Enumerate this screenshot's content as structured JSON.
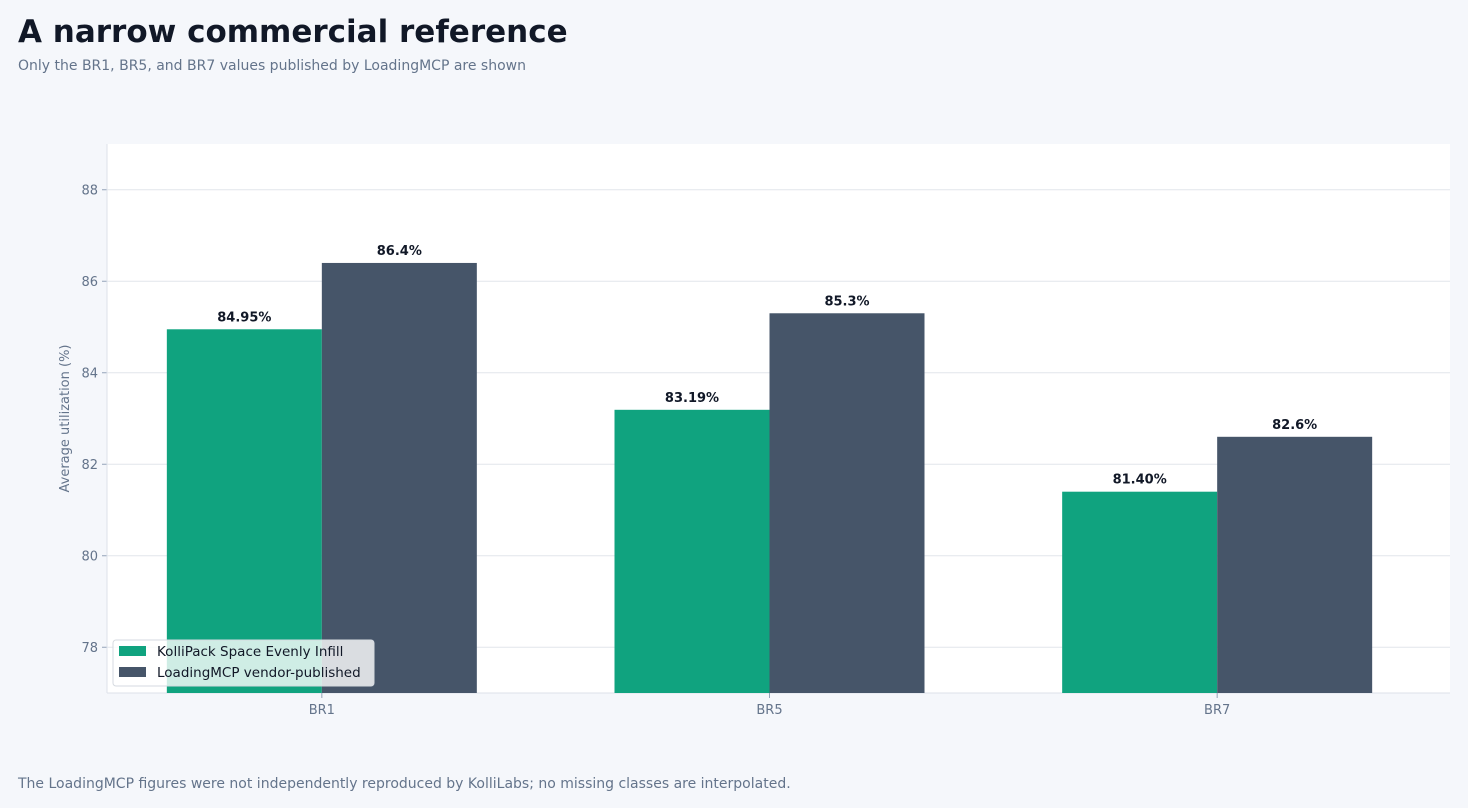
{
  "header": {
    "title": "A narrow commercial reference",
    "subtitle": "Only the BR1, BR5, and BR7 values published by LoadingMCP are shown"
  },
  "footnote": "The LoadingMCP figures were not independently reproduced by KolliLabs; no missing classes are interpolated.",
  "chart_data": {
    "type": "bar",
    "title": "A narrow commercial reference",
    "subtitle": "Only the BR1, BR5, and BR7 values published by LoadingMCP are shown",
    "xlabel": "",
    "ylabel": "Average utilization (%)",
    "categories": [
      "BR1",
      "BR5",
      "BR7"
    ],
    "ylim": [
      77,
      89
    ],
    "yticks": [
      78,
      80,
      82,
      84,
      86,
      88
    ],
    "grid": true,
    "legend_position": "bottom-left",
    "series": [
      {
        "name": "KolliPack Space Evenly Infill",
        "color": "#10a37f",
        "values": [
          84.95,
          83.19,
          81.4
        ],
        "labels": [
          "84.95%",
          "83.19%",
          "81.40%"
        ]
      },
      {
        "name": "LoadingMCP vendor-published",
        "color": "#465569",
        "values": [
          86.4,
          85.3,
          82.6
        ],
        "labels": [
          "86.4%",
          "85.3%",
          "82.6%"
        ]
      }
    ]
  }
}
